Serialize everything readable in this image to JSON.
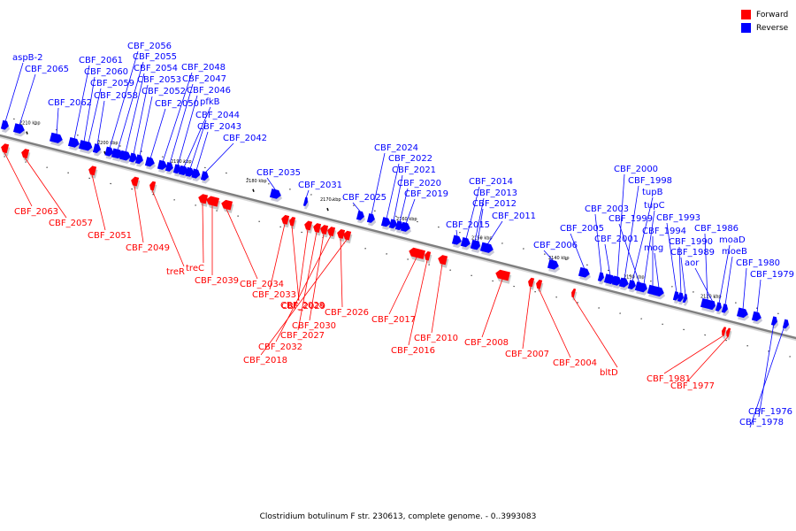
{
  "title": "Clostridium botulinum F str. 230613, complete genome. - 0..3993083",
  "legend": [
    {
      "label": "Forward",
      "color": "#ff0000"
    },
    {
      "label": "Reverse",
      "color": "#0000ff"
    }
  ],
  "colors": {
    "forward": "#ff0000",
    "reverse": "#0000ff",
    "backbone": "#7f7f7f"
  },
  "ticks": [
    "2210 kbp",
    "2200 kbp",
    "2190 kbp",
    "2180 kbp",
    "2170 kbp",
    "2160 kbp",
    "2150 kbp",
    "2140 kbp",
    "2130 kbp",
    "2120 kbp"
  ],
  "reverse_genes": [
    "aspB-2",
    "CBF_2065",
    "CBF_2062",
    "CBF_2061",
    "CBF_2060",
    "CBF_2059",
    "CBF_2058",
    "CBF_2056",
    "CBF_2055",
    "CBF_2054",
    "CBF_2053",
    "CBF_2052",
    "CBF_2050",
    "CBF_2048",
    "CBF_2047",
    "CBF_2046",
    "pfkB",
    "CBF_2044",
    "CBF_2043",
    "CBF_2042",
    "CBF_2035",
    "CBF_2031",
    "CBF_2025",
    "CBF_2024",
    "CBF_2022",
    "CBF_2021",
    "CBF_2020",
    "CBF_2019",
    "CBF_2015",
    "CBF_2014",
    "CBF_2013",
    "CBF_2012",
    "CBF_2011",
    "CBF_2006",
    "CBF_2005",
    "CBF_2003",
    "CBF_2001",
    "CBF_2000",
    "CBF_1998",
    "tupB",
    "CBF_1999",
    "tupC",
    "CBF_1994",
    "mog",
    "CBF_1993",
    "CBF_1990",
    "CBF_1989",
    "CBF_1986",
    "aor",
    "moaD",
    "moeB",
    "CBF_1980",
    "CBF_1979",
    "CBF_1976",
    "CBF_1978"
  ],
  "forward_genes": [
    "CBF_2063",
    "CBF_2057",
    "CBF_2051",
    "CBF_2049",
    "treR",
    "treC",
    "CBF_2039",
    "CBF_2034",
    "CBF_2033",
    "CBF_2029",
    "CBF_2028",
    "CBF_2027",
    "CBF_2030",
    "CBF_2032",
    "CBF_2026",
    "CBF_2018",
    "CBF_2017",
    "CBF_2016",
    "CBF_2010",
    "CBF_2008",
    "CBF_2007",
    "CBF_2004",
    "bltD",
    "CBF_1981",
    "CBF_1977"
  ]
}
